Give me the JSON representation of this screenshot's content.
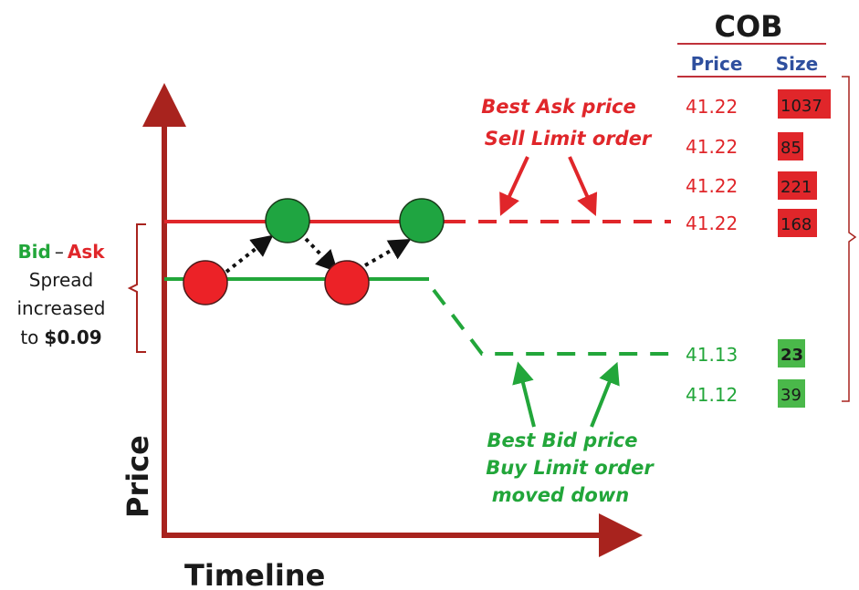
{
  "colors": {
    "ask": "#e0262a",
    "bid": "#22a63a",
    "axis": "#a8231e",
    "header": "#2e4f9e",
    "green_dot": "#1fa541",
    "red_dot": "#ec2227"
  },
  "cob": {
    "title": "COB",
    "price_header": "Price",
    "size_header": "Size",
    "asks": [
      {
        "price": "41.22",
        "size": "1037"
      },
      {
        "price": "41.22",
        "size": "85"
      },
      {
        "price": "41.22",
        "size": "221"
      },
      {
        "price": "41.22",
        "size": "168"
      }
    ],
    "bids": [
      {
        "price": "41.13",
        "size": "23"
      },
      {
        "price": "41.12",
        "size": "39"
      }
    ]
  },
  "annotations": {
    "ask_line1": "Best Ask price",
    "ask_line2": "Sell Limit order",
    "bid_line1": "Best Bid price",
    "bid_line2": "Buy Limit order",
    "bid_line3": "moved down"
  },
  "spread": {
    "bid_word": "Bid",
    "dash": "–",
    "ask_word": "Ask",
    "line2": "Spread",
    "line3": "increased",
    "line4_prefix": "to",
    "line4_value": "$0.09"
  },
  "axes": {
    "y_label": "Price",
    "x_label": "Timeline"
  }
}
